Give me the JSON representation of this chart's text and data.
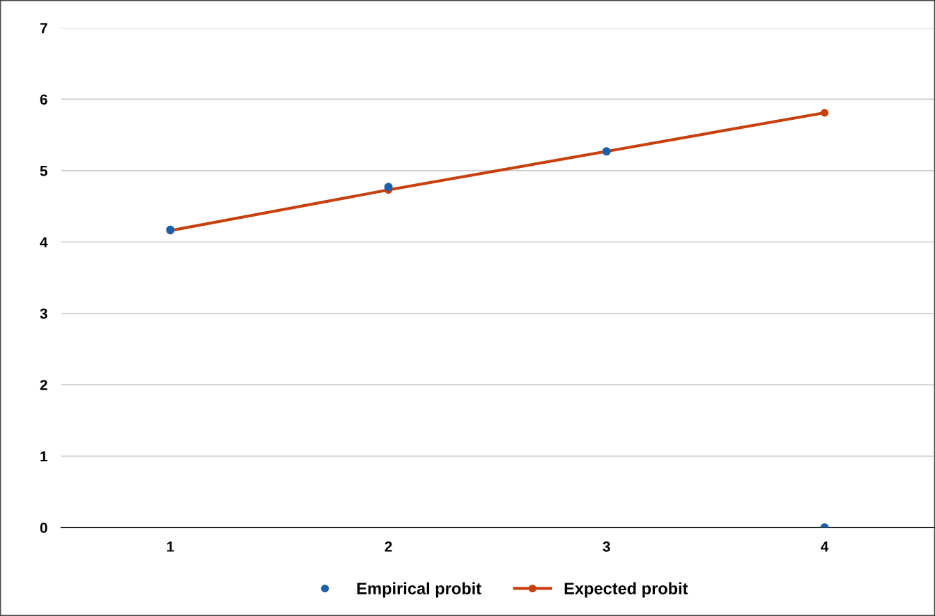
{
  "chart_data": {
    "type": "line",
    "categories": [
      "1",
      "2",
      "3",
      "4"
    ],
    "series": [
      {
        "name": "Empirical probit",
        "type": "scatter",
        "color": "#1f5fa8",
        "marker": "circle",
        "values": [
          4.17,
          4.77,
          5.27,
          0
        ]
      },
      {
        "name": "Expected probit",
        "color": "#c8400e",
        "marker": "circle",
        "line_style": "solid",
        "values": [
          4.16,
          4.73,
          5.27,
          5.81
        ]
      }
    ],
    "ylim": [
      0,
      7
    ],
    "yticks": [
      0,
      1,
      2,
      3,
      4,
      5,
      6,
      7
    ],
    "grid": "y",
    "legend": "bottom"
  }
}
